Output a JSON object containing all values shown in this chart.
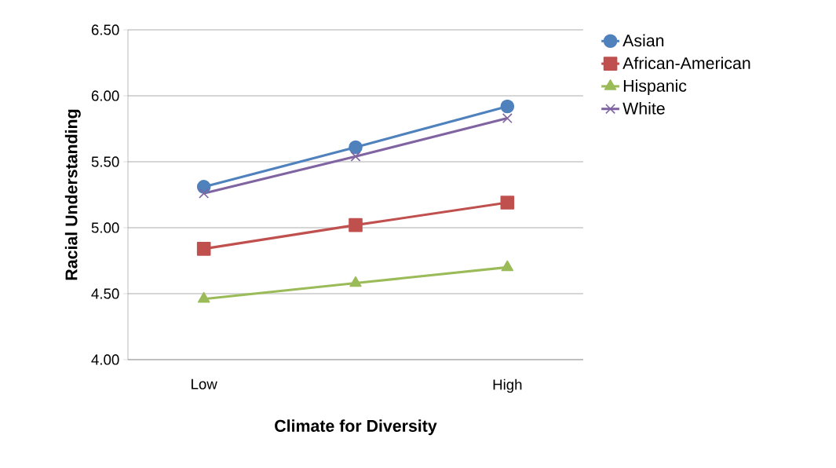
{
  "chart_data": {
    "type": "line",
    "xlabel": "Climate for Diversity",
    "ylabel": "Racial Understanding",
    "categories": [
      "Low",
      null,
      "High"
    ],
    "series": [
      {
        "name": "Asian",
        "color": "#4f81bd",
        "marker": "circle",
        "values": [
          5.31,
          5.61,
          5.92
        ]
      },
      {
        "name": "African-American",
        "color": "#c0504d",
        "marker": "square",
        "values": [
          4.84,
          5.02,
          5.19
        ]
      },
      {
        "name": "Hispanic",
        "color": "#9bbb59",
        "marker": "triangle",
        "values": [
          4.46,
          4.58,
          4.7
        ]
      },
      {
        "name": "White",
        "color": "#8064a2",
        "marker": "cross",
        "values": [
          5.26,
          5.54,
          5.83
        ]
      }
    ],
    "ylim": [
      4.0,
      6.5
    ],
    "yticks": [
      {
        "value": 4.0,
        "label": "4.00"
      },
      {
        "value": 4.5,
        "label": "4.50"
      },
      {
        "value": 5.0,
        "label": "5.00"
      },
      {
        "value": 5.5,
        "label": "5.50"
      },
      {
        "value": 6.0,
        "label": "6.00"
      },
      {
        "value": 6.5,
        "label": "6.50"
      }
    ],
    "grid": "y",
    "legend": "top right",
    "line_style": "solid"
  }
}
